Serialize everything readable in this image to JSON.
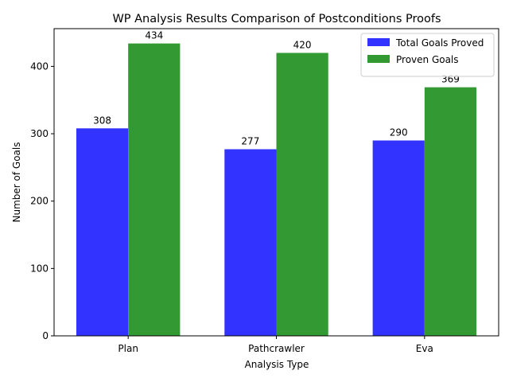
{
  "chart_data": {
    "type": "bar",
    "title": "WP Analysis Results Comparison of Postconditions Proofs",
    "xlabel": "Analysis Type",
    "ylabel": "Number of Goals",
    "categories": [
      "Plan",
      "Pathcrawler",
      "Eva"
    ],
    "series": [
      {
        "name": "Total Goals Proved",
        "values": [
          308,
          277,
          290
        ],
        "color": "#3333ff"
      },
      {
        "name": "Proven Goals",
        "values": [
          434,
          420,
          369
        ],
        "color": "#339933"
      }
    ],
    "ylim": [
      0,
      456
    ],
    "yticks": [
      0,
      100,
      200,
      300,
      400
    ],
    "grid": false,
    "legend": "top-right",
    "bar_labels": true
  }
}
